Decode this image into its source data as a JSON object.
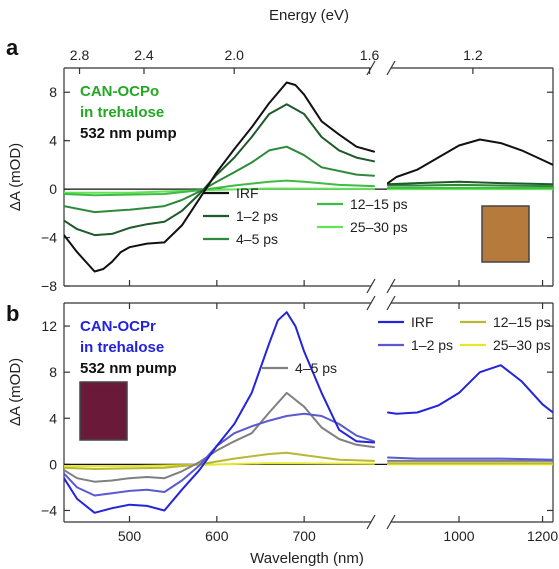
{
  "chart_data": [
    {
      "panel": "a",
      "type": "line",
      "xlabel": "Wavelength (nm)",
      "top_xlabel": "Energy (eV)",
      "top_ticks": [
        "2.8",
        "2.4",
        "2.0",
        "1.6",
        "1.2"
      ],
      "top_tick_energies": [
        2.8,
        2.4,
        2.0,
        1.6,
        1.2
      ],
      "ylabel": "ΔA (mOD)",
      "ylim": [
        -8,
        10
      ],
      "yticks": [
        -8,
        -4,
        0,
        4,
        8
      ],
      "xlim": [
        425,
        1225
      ],
      "axis_break": [
        780,
        830
      ],
      "annotation": [
        "CAN-OCPo",
        "in trehalose",
        "532 nm pump"
      ],
      "annotation_colors": [
        "#22a822",
        "#22a822",
        "#111111"
      ],
      "sample_color": "#b57a3c",
      "series": [
        {
          "name": "IRF",
          "color": "#111111",
          "x": [
            425,
            440,
            460,
            470,
            480,
            490,
            500,
            520,
            540,
            560,
            580,
            600,
            620,
            640,
            660,
            680,
            690,
            700,
            720,
            740,
            760,
            780,
            830,
            850,
            900,
            950,
            1000,
            1050,
            1100,
            1150,
            1200,
            1225
          ],
          "y": [
            -3.8,
            -5.2,
            -6.8,
            -6.6,
            -6.0,
            -5.2,
            -4.8,
            -4.5,
            -4.4,
            -3.0,
            -0.8,
            1.4,
            3.3,
            5.1,
            7.1,
            8.8,
            8.6,
            7.8,
            5.6,
            4.5,
            3.5,
            3.1,
            0.5,
            1.0,
            1.6,
            2.6,
            3.6,
            4.1,
            3.8,
            3.2,
            2.4,
            2.0
          ]
        },
        {
          "name": "1–2 ps",
          "color": "#1f5a2a",
          "x": [
            425,
            440,
            460,
            480,
            500,
            520,
            540,
            560,
            580,
            600,
            620,
            640,
            660,
            680,
            700,
            720,
            740,
            760,
            780,
            830,
            900,
            1000,
            1100,
            1225
          ],
          "y": [
            -2.6,
            -3.3,
            -3.8,
            -3.7,
            -3.2,
            -2.9,
            -2.7,
            -1.8,
            -0.4,
            1.2,
            2.6,
            4.3,
            6.2,
            7.0,
            6.2,
            4.3,
            3.2,
            2.6,
            2.3,
            0.4,
            0.5,
            0.6,
            0.5,
            0.4
          ]
        },
        {
          "name": "4–5 ps",
          "color": "#2e8a3a",
          "x": [
            425,
            460,
            500,
            540,
            560,
            580,
            600,
            620,
            640,
            660,
            680,
            700,
            720,
            760,
            780,
            830,
            900,
            1000,
            1100,
            1225
          ],
          "y": [
            -1.4,
            -1.9,
            -1.7,
            -1.4,
            -0.9,
            -0.2,
            0.6,
            1.4,
            2.2,
            3.2,
            3.5,
            2.8,
            1.8,
            1.2,
            1.1,
            0.3,
            0.3,
            0.35,
            0.3,
            0.25
          ]
        },
        {
          "name": "12–15 ps",
          "color": "#3fba45",
          "x": [
            425,
            460,
            500,
            540,
            580,
            620,
            660,
            680,
            700,
            740,
            780,
            830,
            1000,
            1225
          ],
          "y": [
            -0.4,
            -0.5,
            -0.45,
            -0.4,
            -0.1,
            0.3,
            0.6,
            0.7,
            0.6,
            0.35,
            0.25,
            0.1,
            0.1,
            0.1
          ]
        },
        {
          "name": "25–30 ps",
          "color": "#62e455",
          "x": [
            425,
            500,
            580,
            660,
            780,
            830,
            1000,
            1225
          ],
          "y": [
            -0.3,
            -0.3,
            -0.1,
            0.05,
            0.02,
            0.0,
            0.0,
            0.0
          ]
        }
      ]
    },
    {
      "panel": "b",
      "type": "line",
      "xlabel": "Wavelength (nm)",
      "ylabel": "ΔA (mOD)",
      "ylim": [
        -5,
        14
      ],
      "yticks": [
        -4,
        0,
        4,
        8,
        12
      ],
      "xlim": [
        425,
        1225
      ],
      "xticks": [
        500,
        600,
        700,
        1000,
        1200
      ],
      "axis_break": [
        780,
        830
      ],
      "annotation": [
        "CAN-OCPr",
        "in trehalose",
        "532 nm pump"
      ],
      "annotation_colors": [
        "#2222dd",
        "#2222dd",
        "#111111"
      ],
      "sample_color": "#6b1a3a",
      "series": [
        {
          "name": "IRF",
          "color": "#2424d8",
          "x": [
            425,
            440,
            460,
            480,
            500,
            520,
            540,
            560,
            580,
            600,
            620,
            640,
            660,
            670,
            680,
            690,
            700,
            720,
            740,
            760,
            780,
            830,
            850,
            900,
            950,
            1000,
            1050,
            1100,
            1150,
            1200,
            1225
          ],
          "y": [
            -1.2,
            -3.0,
            -4.2,
            -3.8,
            -3.5,
            -3.6,
            -4.0,
            -2.2,
            -0.5,
            1.6,
            3.5,
            6.2,
            10.5,
            12.5,
            13.2,
            12.0,
            9.8,
            6.2,
            3.0,
            2.0,
            1.9,
            4.5,
            4.4,
            4.5,
            5.1,
            6.2,
            8.0,
            8.6,
            7.2,
            5.2,
            4.5
          ]
        },
        {
          "name": "1–2 ps",
          "color": "#5a5ad0",
          "x": [
            425,
            440,
            460,
            480,
            500,
            520,
            540,
            560,
            580,
            600,
            620,
            640,
            660,
            680,
            700,
            720,
            740,
            760,
            780,
            830,
            900,
            1000,
            1100,
            1225
          ],
          "y": [
            -0.8,
            -2.0,
            -2.7,
            -2.5,
            -2.3,
            -2.2,
            -2.4,
            -1.4,
            -0.1,
            1.6,
            2.7,
            3.3,
            3.8,
            4.2,
            4.4,
            4.2,
            3.5,
            2.5,
            2.0,
            0.6,
            0.5,
            0.5,
            0.5,
            0.4
          ]
        },
        {
          "name": "4–5 ps",
          "color": "#808080",
          "x": [
            425,
            440,
            460,
            480,
            500,
            520,
            540,
            560,
            580,
            600,
            620,
            640,
            660,
            680,
            700,
            720,
            740,
            760,
            780,
            830,
            900,
            1000,
            1100,
            1225
          ],
          "y": [
            -0.5,
            -1.2,
            -1.5,
            -1.4,
            -1.2,
            -1.1,
            -1.2,
            -0.6,
            0.2,
            1.2,
            2.0,
            2.7,
            4.5,
            6.2,
            5.0,
            3.2,
            2.2,
            1.7,
            1.5,
            0.3,
            0.3,
            0.3,
            0.3,
            0.3
          ]
        },
        {
          "name": "12–15 ps",
          "color": "#b8b832",
          "x": [
            425,
            460,
            500,
            540,
            580,
            620,
            660,
            680,
            700,
            740,
            780,
            830,
            1000,
            1225
          ],
          "y": [
            -0.3,
            -0.4,
            -0.35,
            -0.3,
            0.0,
            0.5,
            0.9,
            1.0,
            0.8,
            0.4,
            0.3,
            0.1,
            0.1,
            0.1
          ]
        },
        {
          "name": "25–30 ps",
          "color": "#e6e62a",
          "x": [
            425,
            500,
            580,
            660,
            780,
            830,
            1000,
            1225
          ],
          "y": [
            -0.15,
            -0.15,
            -0.05,
            0.1,
            0.05,
            0.0,
            0.0,
            0.0
          ]
        }
      ]
    }
  ]
}
